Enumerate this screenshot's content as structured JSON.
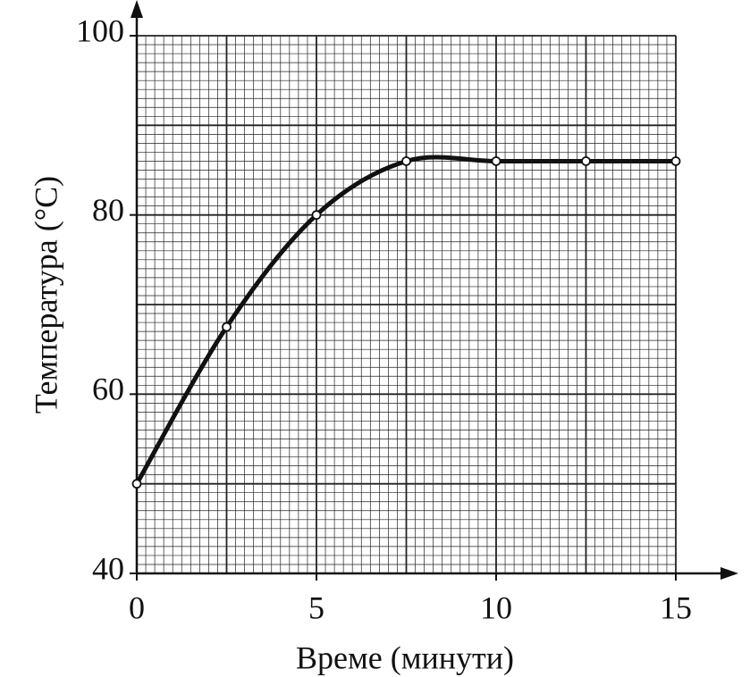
{
  "chart_data": {
    "type": "line",
    "x_label": "Време (минути)",
    "y_label": "Температура (°C)",
    "x": [
      0,
      2.5,
      5,
      7.5,
      10,
      12.5,
      15
    ],
    "series": [
      {
        "color": "#111111",
        "values": [
          50,
          67.5,
          80,
          86,
          86,
          86,
          86
        ]
      }
    ],
    "xlim": [
      0,
      15
    ],
    "xticks": [
      0,
      5,
      10,
      15
    ],
    "ylim": [
      40,
      100
    ],
    "yticks": [
      40,
      60,
      80,
      100
    ],
    "grid": {
      "x_major": 2.5,
      "y_major": 10,
      "x_minor": 0.25,
      "y_minor": 1
    }
  }
}
